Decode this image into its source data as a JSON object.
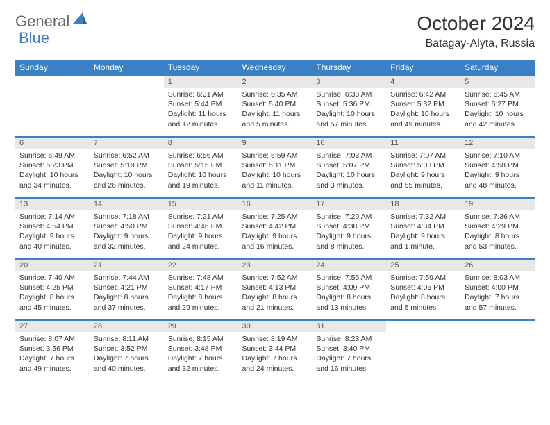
{
  "brand": {
    "text1": "General",
    "text2": "Blue"
  },
  "title": "October 2024",
  "location": "Batagay-Alyta, Russia",
  "colors": {
    "accent": "#3b7fc4",
    "header_bg": "#3b7fc4",
    "header_text": "#ffffff",
    "daynum_bg": "#e8e8e8",
    "text": "#333333",
    "muted": "#666666"
  },
  "day_headers": [
    "Sunday",
    "Monday",
    "Tuesday",
    "Wednesday",
    "Thursday",
    "Friday",
    "Saturday"
  ],
  "weeks": [
    [
      null,
      null,
      {
        "n": "1",
        "sr": "6:31 AM",
        "ss": "5:44 PM",
        "dl": "11 hours and 12 minutes."
      },
      {
        "n": "2",
        "sr": "6:35 AM",
        "ss": "5:40 PM",
        "dl": "11 hours and 5 minutes."
      },
      {
        "n": "3",
        "sr": "6:38 AM",
        "ss": "5:36 PM",
        "dl": "10 hours and 57 minutes."
      },
      {
        "n": "4",
        "sr": "6:42 AM",
        "ss": "5:32 PM",
        "dl": "10 hours and 49 minutes."
      },
      {
        "n": "5",
        "sr": "6:45 AM",
        "ss": "5:27 PM",
        "dl": "10 hours and 42 minutes."
      }
    ],
    [
      {
        "n": "6",
        "sr": "6:49 AM",
        "ss": "5:23 PM",
        "dl": "10 hours and 34 minutes."
      },
      {
        "n": "7",
        "sr": "6:52 AM",
        "ss": "5:19 PM",
        "dl": "10 hours and 26 minutes."
      },
      {
        "n": "8",
        "sr": "6:56 AM",
        "ss": "5:15 PM",
        "dl": "10 hours and 19 minutes."
      },
      {
        "n": "9",
        "sr": "6:59 AM",
        "ss": "5:11 PM",
        "dl": "10 hours and 11 minutes."
      },
      {
        "n": "10",
        "sr": "7:03 AM",
        "ss": "5:07 PM",
        "dl": "10 hours and 3 minutes."
      },
      {
        "n": "11",
        "sr": "7:07 AM",
        "ss": "5:03 PM",
        "dl": "9 hours and 55 minutes."
      },
      {
        "n": "12",
        "sr": "7:10 AM",
        "ss": "4:58 PM",
        "dl": "9 hours and 48 minutes."
      }
    ],
    [
      {
        "n": "13",
        "sr": "7:14 AM",
        "ss": "4:54 PM",
        "dl": "9 hours and 40 minutes."
      },
      {
        "n": "14",
        "sr": "7:18 AM",
        "ss": "4:50 PM",
        "dl": "9 hours and 32 minutes."
      },
      {
        "n": "15",
        "sr": "7:21 AM",
        "ss": "4:46 PM",
        "dl": "9 hours and 24 minutes."
      },
      {
        "n": "16",
        "sr": "7:25 AM",
        "ss": "4:42 PM",
        "dl": "9 hours and 16 minutes."
      },
      {
        "n": "17",
        "sr": "7:29 AM",
        "ss": "4:38 PM",
        "dl": "9 hours and 8 minutes."
      },
      {
        "n": "18",
        "sr": "7:32 AM",
        "ss": "4:34 PM",
        "dl": "9 hours and 1 minute."
      },
      {
        "n": "19",
        "sr": "7:36 AM",
        "ss": "4:29 PM",
        "dl": "8 hours and 53 minutes."
      }
    ],
    [
      {
        "n": "20",
        "sr": "7:40 AM",
        "ss": "4:25 PM",
        "dl": "8 hours and 45 minutes."
      },
      {
        "n": "21",
        "sr": "7:44 AM",
        "ss": "4:21 PM",
        "dl": "8 hours and 37 minutes."
      },
      {
        "n": "22",
        "sr": "7:48 AM",
        "ss": "4:17 PM",
        "dl": "8 hours and 29 minutes."
      },
      {
        "n": "23",
        "sr": "7:52 AM",
        "ss": "4:13 PM",
        "dl": "8 hours and 21 minutes."
      },
      {
        "n": "24",
        "sr": "7:55 AM",
        "ss": "4:09 PM",
        "dl": "8 hours and 13 minutes."
      },
      {
        "n": "25",
        "sr": "7:59 AM",
        "ss": "4:05 PM",
        "dl": "8 hours and 5 minutes."
      },
      {
        "n": "26",
        "sr": "8:03 AM",
        "ss": "4:00 PM",
        "dl": "7 hours and 57 minutes."
      }
    ],
    [
      {
        "n": "27",
        "sr": "8:07 AM",
        "ss": "3:56 PM",
        "dl": "7 hours and 49 minutes."
      },
      {
        "n": "28",
        "sr": "8:11 AM",
        "ss": "3:52 PM",
        "dl": "7 hours and 40 minutes."
      },
      {
        "n": "29",
        "sr": "8:15 AM",
        "ss": "3:48 PM",
        "dl": "7 hours and 32 minutes."
      },
      {
        "n": "30",
        "sr": "8:19 AM",
        "ss": "3:44 PM",
        "dl": "7 hours and 24 minutes."
      },
      {
        "n": "31",
        "sr": "8:23 AM",
        "ss": "3:40 PM",
        "dl": "7 hours and 16 minutes."
      },
      null,
      null
    ]
  ],
  "labels": {
    "sunrise": "Sunrise:",
    "sunset": "Sunset:",
    "daylight": "Daylight:"
  }
}
